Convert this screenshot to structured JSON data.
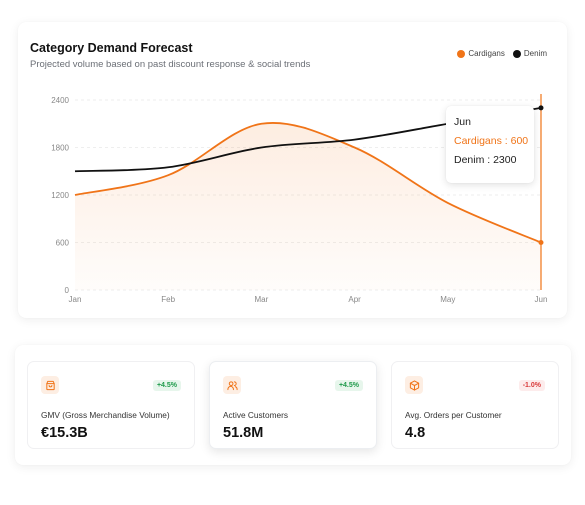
{
  "chart_data": {
    "type": "line",
    "title": "Category Demand Forecast",
    "subtitle": "Projected volume based on past discount response & social trends",
    "categories": [
      "Jan",
      "Feb",
      "Mar",
      "Apr",
      "May",
      "Jun"
    ],
    "series": [
      {
        "name": "Cardigans",
        "values": [
          1200,
          1450,
          2100,
          1800,
          1100,
          600
        ],
        "color": "#f07418",
        "area": true
      },
      {
        "name": "Denim",
        "values": [
          1500,
          1550,
          1800,
          1900,
          2100,
          2300
        ],
        "color": "#111111",
        "area": false
      }
    ],
    "ylim": [
      0,
      2400
    ],
    "yticks": [
      0,
      600,
      1200,
      1800,
      2400
    ],
    "grid": true,
    "legend": "top-right",
    "tooltip": {
      "category": "Jun",
      "rows": [
        {
          "text": "Cardigans : 600",
          "color": "#f07418"
        },
        {
          "text": "Denim : 2300",
          "color": "#222222"
        }
      ]
    }
  },
  "kpis": [
    {
      "icon": "shopping-bag-icon",
      "label": "GMV (Gross Merchandise Volume)",
      "value": "€15.3B",
      "change": "+4.5%",
      "trend": "up"
    },
    {
      "icon": "users-icon",
      "label": "Active Customers",
      "value": "51.8M",
      "change": "+4.5%",
      "trend": "up"
    },
    {
      "icon": "package-icon",
      "label": "Avg. Orders per Customer",
      "value": "4.8",
      "change": "-1.0%",
      "trend": "down"
    }
  ],
  "colors": {
    "accent": "#f07418",
    "icon_bg": "#fdeee3",
    "positive": "#1e9a4a",
    "negative": "#d93a3a"
  }
}
